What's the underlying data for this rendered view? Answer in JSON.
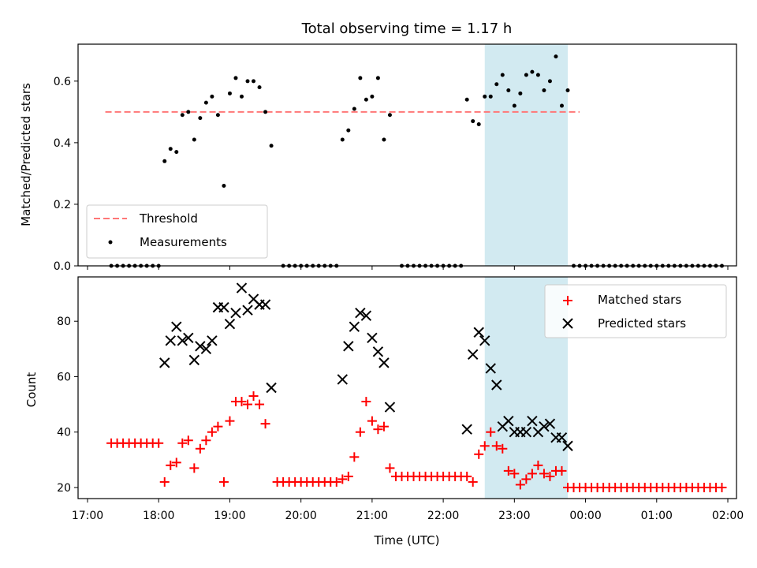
{
  "chart_data": [
    {
      "type": "scatter",
      "title": "Total observing time = 1.17 h",
      "ylabel": "Matched/Predicted stars",
      "xlabel": "",
      "xlim": [
        "17:00",
        "02:00"
      ],
      "ylim": [
        0.0,
        0.72
      ],
      "yticks": [
        0.0,
        0.2,
        0.4,
        0.6
      ],
      "ytick_labels": [
        "0.0",
        "0.2",
        "0.4",
        "0.6"
      ],
      "highlight_span": [
        "22:35",
        "23:45"
      ],
      "highlight_color": "#add8e6",
      "legend_position": "lower-left",
      "threshold": {
        "name": "Threshold",
        "value": 0.5,
        "x_range": [
          "17:15",
          "23:55"
        ],
        "color": "#ff7777"
      },
      "series": [
        {
          "name": "Measurements",
          "color": "#000000",
          "points": [
            [
              "17:20",
              0.0
            ],
            [
              "17:25",
              0.0
            ],
            [
              "17:30",
              0.0
            ],
            [
              "17:35",
              0.0
            ],
            [
              "17:40",
              0.0
            ],
            [
              "17:45",
              0.0
            ],
            [
              "17:50",
              0.0
            ],
            [
              "17:55",
              0.0
            ],
            [
              "18:00",
              0.0
            ],
            [
              "18:05",
              0.34
            ],
            [
              "18:10",
              0.38
            ],
            [
              "18:15",
              0.37
            ],
            [
              "18:20",
              0.49
            ],
            [
              "18:25",
              0.5
            ],
            [
              "18:30",
              0.41
            ],
            [
              "18:35",
              0.48
            ],
            [
              "18:40",
              0.53
            ],
            [
              "18:45",
              0.55
            ],
            [
              "18:50",
              0.49
            ],
            [
              "18:55",
              0.26
            ],
            [
              "19:00",
              0.56
            ],
            [
              "19:05",
              0.61
            ],
            [
              "19:10",
              0.55
            ],
            [
              "19:15",
              0.6
            ],
            [
              "19:20",
              0.6
            ],
            [
              "19:25",
              0.58
            ],
            [
              "19:30",
              0.5
            ],
            [
              "19:35",
              0.39
            ],
            [
              "19:45",
              0.0
            ],
            [
              "19:50",
              0.0
            ],
            [
              "19:55",
              0.0
            ],
            [
              "20:00",
              0.0
            ],
            [
              "20:05",
              0.0
            ],
            [
              "20:10",
              0.0
            ],
            [
              "20:15",
              0.0
            ],
            [
              "20:20",
              0.0
            ],
            [
              "20:25",
              0.0
            ],
            [
              "20:30",
              0.0
            ],
            [
              "20:35",
              0.41
            ],
            [
              "20:40",
              0.44
            ],
            [
              "20:45",
              0.51
            ],
            [
              "20:50",
              0.61
            ],
            [
              "20:55",
              0.54
            ],
            [
              "21:00",
              0.55
            ],
            [
              "21:05",
              0.61
            ],
            [
              "21:10",
              0.41
            ],
            [
              "21:15",
              0.49
            ],
            [
              "21:25",
              0.0
            ],
            [
              "21:30",
              0.0
            ],
            [
              "21:35",
              0.0
            ],
            [
              "21:40",
              0.0
            ],
            [
              "21:45",
              0.0
            ],
            [
              "21:50",
              0.0
            ],
            [
              "21:55",
              0.0
            ],
            [
              "22:00",
              0.0
            ],
            [
              "22:05",
              0.0
            ],
            [
              "22:10",
              0.0
            ],
            [
              "22:15",
              0.0
            ],
            [
              "22:20",
              0.54
            ],
            [
              "22:25",
              0.47
            ],
            [
              "22:30",
              0.46
            ],
            [
              "22:35",
              0.55
            ],
            [
              "22:40",
              0.55
            ],
            [
              "22:45",
              0.59
            ],
            [
              "22:50",
              0.62
            ],
            [
              "22:55",
              0.57
            ],
            [
              "23:00",
              0.52
            ],
            [
              "23:05",
              0.56
            ],
            [
              "23:10",
              0.62
            ],
            [
              "23:15",
              0.63
            ],
            [
              "23:20",
              0.62
            ],
            [
              "23:25",
              0.57
            ],
            [
              "23:30",
              0.6
            ],
            [
              "23:35",
              0.68
            ],
            [
              "23:40",
              0.52
            ],
            [
              "23:45",
              0.57
            ],
            [
              "23:50",
              0.0
            ],
            [
              "23:55",
              0.0
            ],
            [
              "00:00",
              0.0
            ],
            [
              "00:05",
              0.0
            ],
            [
              "00:10",
              0.0
            ],
            [
              "00:15",
              0.0
            ],
            [
              "00:20",
              0.0
            ],
            [
              "00:25",
              0.0
            ],
            [
              "00:30",
              0.0
            ],
            [
              "00:35",
              0.0
            ],
            [
              "00:40",
              0.0
            ],
            [
              "00:45",
              0.0
            ],
            [
              "00:50",
              0.0
            ],
            [
              "00:55",
              0.0
            ],
            [
              "01:00",
              0.0
            ],
            [
              "01:05",
              0.0
            ],
            [
              "01:10",
              0.0
            ],
            [
              "01:15",
              0.0
            ],
            [
              "01:20",
              0.0
            ],
            [
              "01:25",
              0.0
            ],
            [
              "01:30",
              0.0
            ],
            [
              "01:35",
              0.0
            ],
            [
              "01:40",
              0.0
            ],
            [
              "01:45",
              0.0
            ],
            [
              "01:50",
              0.0
            ],
            [
              "01:55",
              0.0
            ]
          ]
        }
      ]
    },
    {
      "type": "scatter",
      "title": "",
      "ylabel": "Count",
      "xlabel": "Time (UTC)",
      "xlim": [
        "17:00",
        "02:00"
      ],
      "xticks": [
        "17:00",
        "18:00",
        "19:00",
        "20:00",
        "21:00",
        "22:00",
        "23:00",
        "00:00",
        "01:00",
        "02:00"
      ],
      "ylim": [
        16,
        96
      ],
      "yticks": [
        20,
        40,
        60,
        80
      ],
      "ytick_labels": [
        "20",
        "40",
        "60",
        "80"
      ],
      "highlight_span": [
        "22:35",
        "23:45"
      ],
      "highlight_color": "#add8e6",
      "legend_position": "top-right",
      "series": [
        {
          "name": "Matched stars",
          "marker": "plus",
          "color": "#ff0000",
          "points": [
            [
              "17:20",
              36
            ],
            [
              "17:25",
              36
            ],
            [
              "17:30",
              36
            ],
            [
              "17:35",
              36
            ],
            [
              "17:40",
              36
            ],
            [
              "17:45",
              36
            ],
            [
              "17:50",
              36
            ],
            [
              "17:55",
              36
            ],
            [
              "18:00",
              36
            ],
            [
              "18:05",
              22
            ],
            [
              "18:10",
              28
            ],
            [
              "18:15",
              29
            ],
            [
              "18:20",
              36
            ],
            [
              "18:25",
              37
            ],
            [
              "18:30",
              27
            ],
            [
              "18:35",
              34
            ],
            [
              "18:40",
              37
            ],
            [
              "18:45",
              40
            ],
            [
              "18:50",
              42
            ],
            [
              "18:55",
              22
            ],
            [
              "19:00",
              44
            ],
            [
              "19:05",
              51
            ],
            [
              "19:10",
              51
            ],
            [
              "19:15",
              50
            ],
            [
              "19:20",
              53
            ],
            [
              "19:25",
              50
            ],
            [
              "19:30",
              43
            ],
            [
              "19:40",
              22
            ],
            [
              "19:45",
              22
            ],
            [
              "19:50",
              22
            ],
            [
              "19:55",
              22
            ],
            [
              "20:00",
              22
            ],
            [
              "20:05",
              22
            ],
            [
              "20:10",
              22
            ],
            [
              "20:15",
              22
            ],
            [
              "20:20",
              22
            ],
            [
              "20:25",
              22
            ],
            [
              "20:30",
              22
            ],
            [
              "20:35",
              23
            ],
            [
              "20:40",
              24
            ],
            [
              "20:45",
              31
            ],
            [
              "20:50",
              40
            ],
            [
              "20:55",
              51
            ],
            [
              "21:00",
              44
            ],
            [
              "21:05",
              41
            ],
            [
              "21:10",
              42
            ],
            [
              "21:15",
              27
            ],
            [
              "21:20",
              24
            ],
            [
              "21:25",
              24
            ],
            [
              "21:30",
              24
            ],
            [
              "21:35",
              24
            ],
            [
              "21:40",
              24
            ],
            [
              "21:45",
              24
            ],
            [
              "21:50",
              24
            ],
            [
              "21:55",
              24
            ],
            [
              "22:00",
              24
            ],
            [
              "22:05",
              24
            ],
            [
              "22:10",
              24
            ],
            [
              "22:15",
              24
            ],
            [
              "22:20",
              24
            ],
            [
              "22:25",
              22
            ],
            [
              "22:30",
              32
            ],
            [
              "22:35",
              35
            ],
            [
              "22:40",
              40
            ],
            [
              "22:45",
              35
            ],
            [
              "22:50",
              34
            ],
            [
              "22:55",
              26
            ],
            [
              "23:00",
              25
            ],
            [
              "23:05",
              21
            ],
            [
              "23:10",
              23
            ],
            [
              "23:15",
              25
            ],
            [
              "23:20",
              28
            ],
            [
              "23:25",
              25
            ],
            [
              "23:30",
              24
            ],
            [
              "23:35",
              26
            ],
            [
              "23:40",
              26
            ],
            [
              "23:45",
              20
            ],
            [
              "23:50",
              20
            ],
            [
              "23:55",
              20
            ],
            [
              "00:00",
              20
            ],
            [
              "00:05",
              20
            ],
            [
              "00:10",
              20
            ],
            [
              "00:15",
              20
            ],
            [
              "00:20",
              20
            ],
            [
              "00:25",
              20
            ],
            [
              "00:30",
              20
            ],
            [
              "00:35",
              20
            ],
            [
              "00:40",
              20
            ],
            [
              "00:45",
              20
            ],
            [
              "00:50",
              20
            ],
            [
              "00:55",
              20
            ],
            [
              "01:00",
              20
            ],
            [
              "01:05",
              20
            ],
            [
              "01:10",
              20
            ],
            [
              "01:15",
              20
            ],
            [
              "01:20",
              20
            ],
            [
              "01:25",
              20
            ],
            [
              "01:30",
              20
            ],
            [
              "01:35",
              20
            ],
            [
              "01:40",
              20
            ],
            [
              "01:45",
              20
            ],
            [
              "01:50",
              20
            ],
            [
              "01:55",
              20
            ]
          ]
        },
        {
          "name": "Predicted stars",
          "marker": "x",
          "color": "#000000",
          "points": [
            [
              "18:05",
              65
            ],
            [
              "18:10",
              73
            ],
            [
              "18:15",
              78
            ],
            [
              "18:20",
              73
            ],
            [
              "18:25",
              74
            ],
            [
              "18:30",
              66
            ],
            [
              "18:35",
              71
            ],
            [
              "18:40",
              70
            ],
            [
              "18:45",
              73
            ],
            [
              "18:50",
              85
            ],
            [
              "18:55",
              85
            ],
            [
              "19:00",
              79
            ],
            [
              "19:05",
              83
            ],
            [
              "19:10",
              92
            ],
            [
              "19:15",
              84
            ],
            [
              "19:20",
              88
            ],
            [
              "19:25",
              86
            ],
            [
              "19:30",
              86
            ],
            [
              "19:35",
              56
            ],
            [
              "20:35",
              59
            ],
            [
              "20:40",
              71
            ],
            [
              "20:45",
              78
            ],
            [
              "20:50",
              83
            ],
            [
              "20:55",
              82
            ],
            [
              "21:00",
              74
            ],
            [
              "21:05",
              69
            ],
            [
              "21:10",
              65
            ],
            [
              "21:15",
              49
            ],
            [
              "22:20",
              41
            ],
            [
              "22:25",
              68
            ],
            [
              "22:30",
              76
            ],
            [
              "22:35",
              73
            ],
            [
              "22:40",
              63
            ],
            [
              "22:45",
              57
            ],
            [
              "22:50",
              42
            ],
            [
              "22:55",
              44
            ],
            [
              "23:00",
              40
            ],
            [
              "23:05",
              40
            ],
            [
              "23:10",
              40
            ],
            [
              "23:15",
              44
            ],
            [
              "23:20",
              40
            ],
            [
              "23:25",
              42
            ],
            [
              "23:30",
              43
            ],
            [
              "23:35",
              38
            ],
            [
              "23:40",
              38
            ],
            [
              "23:45",
              35
            ]
          ]
        }
      ]
    }
  ]
}
